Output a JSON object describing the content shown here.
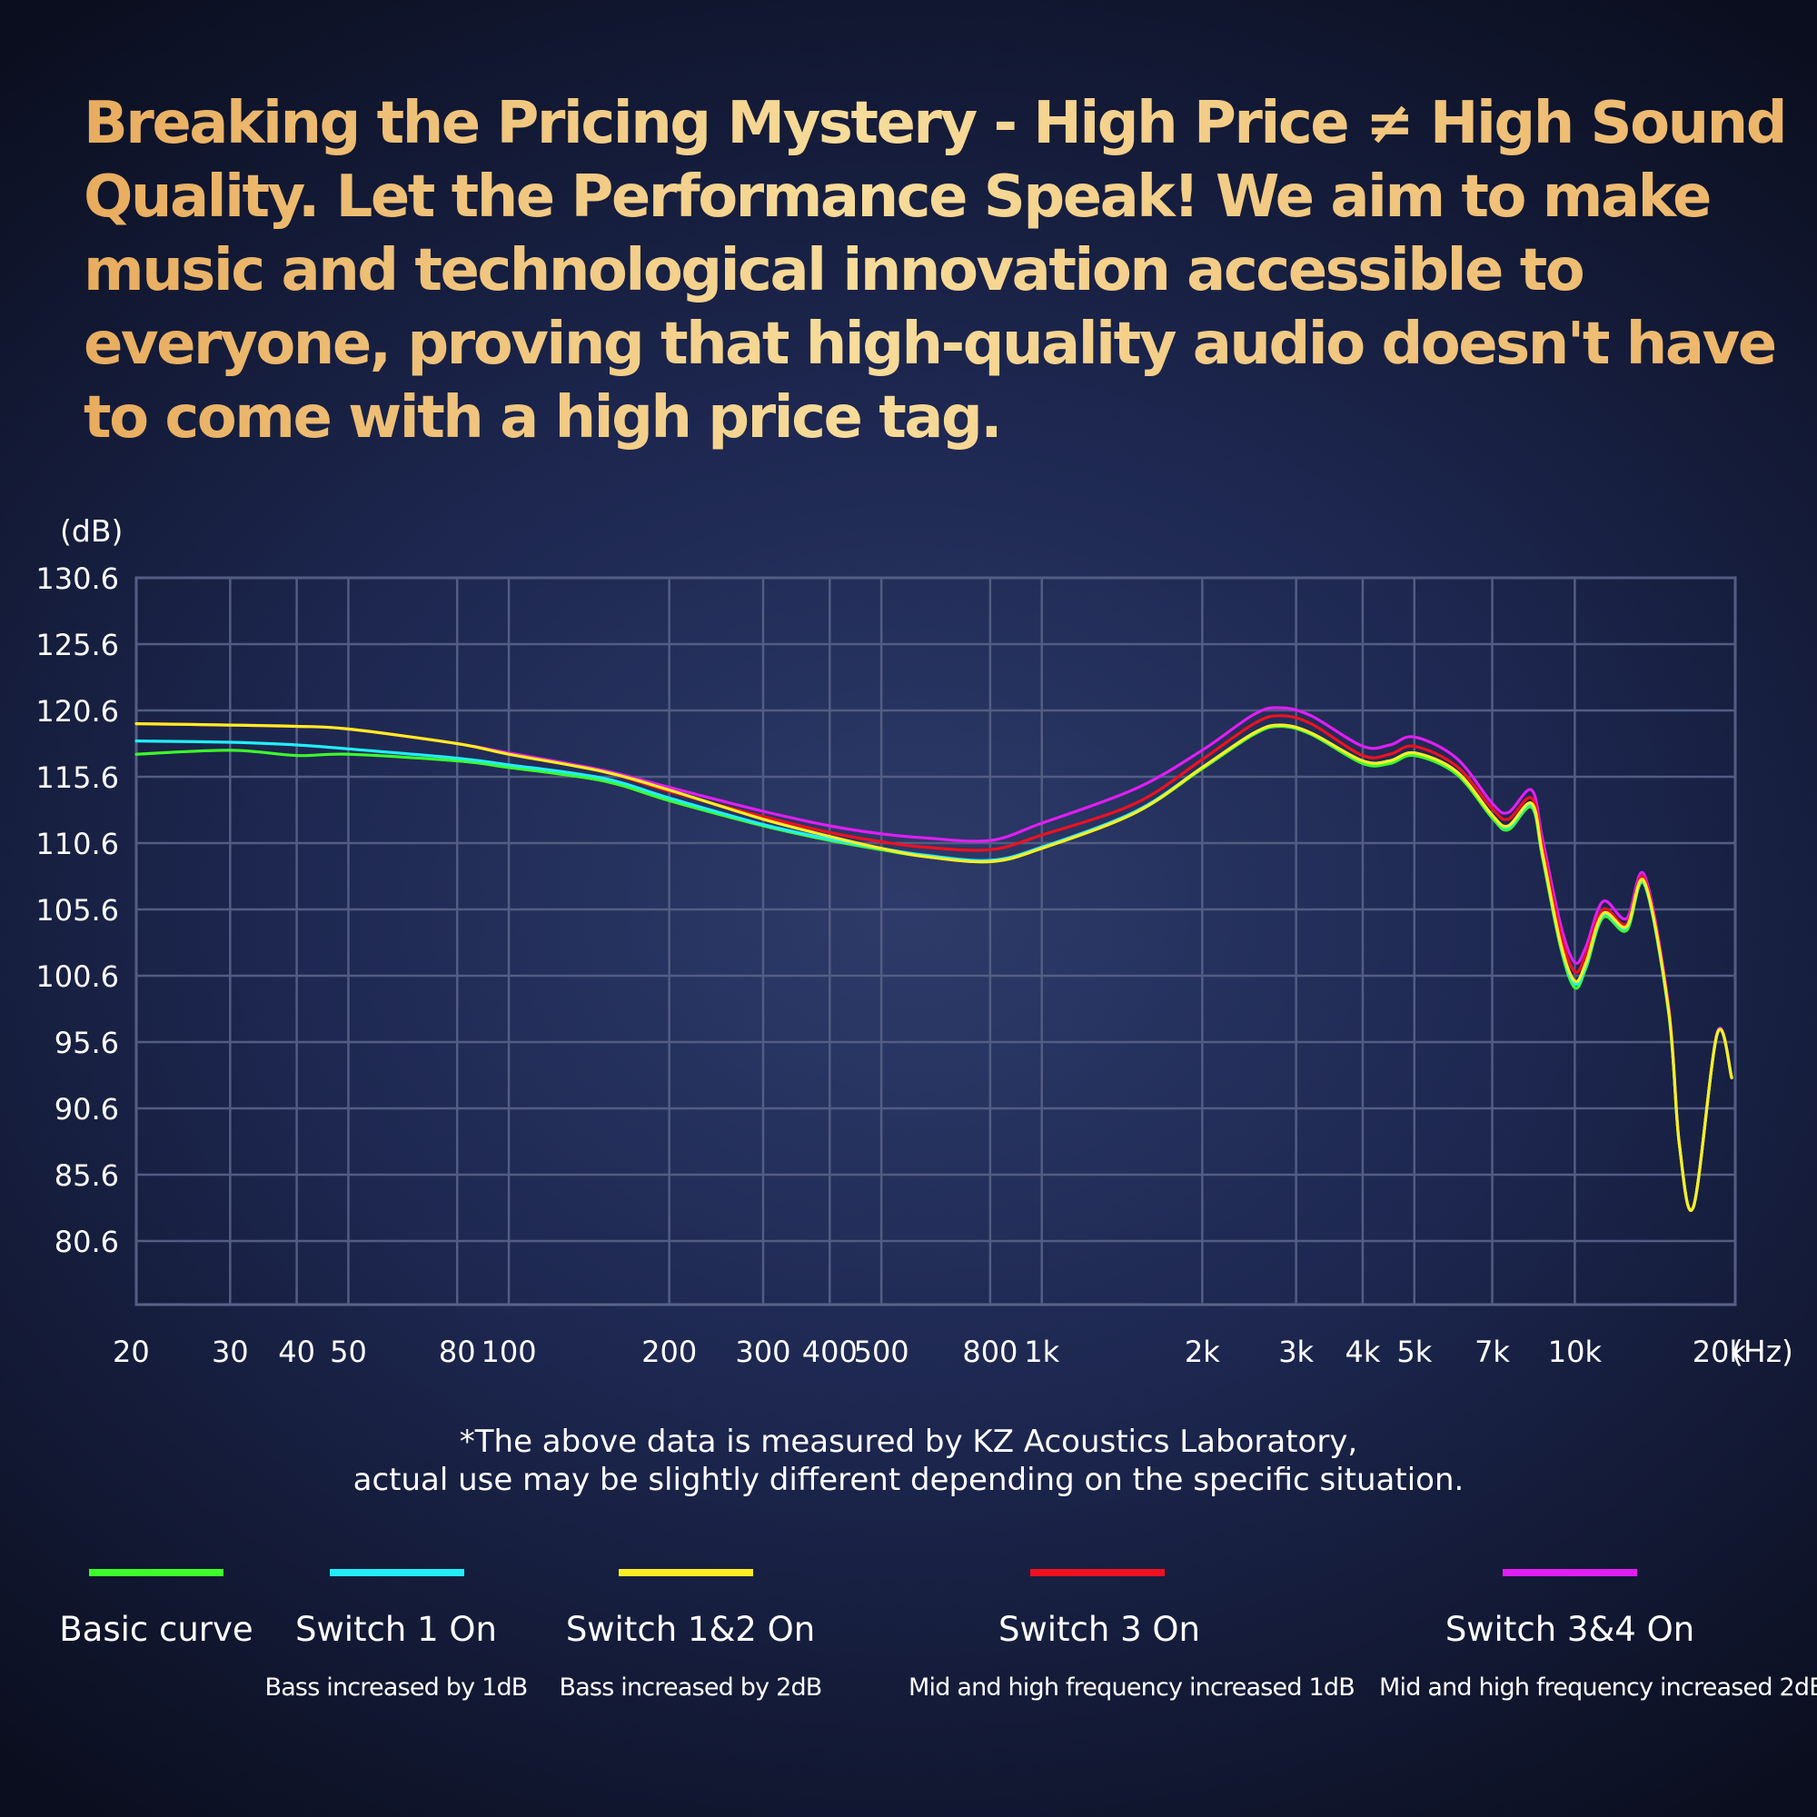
{
  "headline": "Breaking the Pricing Mystery - High Price ≠ High Sound Quality. Let the Performance Speak! We aim to make music and technological innovation accessible to everyone,  proving that high-quality audio doesn't have to come with a high price tag.",
  "note": {
    "line1": "*The above data is measured by KZ Acoustics Laboratory,",
    "line2": "actual use may be slightly different depending on the specific situation."
  },
  "chart_data": {
    "type": "line",
    "title": "",
    "ylabel": "(dB)",
    "xlabel": "(Hz)",
    "xscale": "log",
    "xlim": [
      20,
      20000
    ],
    "ylim": [
      75.6,
      130.6
    ],
    "yticks": [
      "130.6",
      "125.6",
      "120.6",
      "115.6",
      "110.6",
      "105.6",
      "100.6",
      "95.6",
      "90.6",
      "85.6",
      "80.6"
    ],
    "xticks": [
      {
        "value": 20,
        "label": "20"
      },
      {
        "value": 30,
        "label": "30"
      },
      {
        "value": 40,
        "label": "40"
      },
      {
        "value": 50,
        "label": "50"
      },
      {
        "value": 80,
        "label": "80"
      },
      {
        "value": 100,
        "label": "100"
      },
      {
        "value": 200,
        "label": "200"
      },
      {
        "value": 300,
        "label": "300"
      },
      {
        "value": 400,
        "label": "400"
      },
      {
        "value": 500,
        "label": "500"
      },
      {
        "value": 800,
        "label": "800"
      },
      {
        "value": 1000,
        "label": "1k"
      },
      {
        "value": 2000,
        "label": "2k"
      },
      {
        "value": 3000,
        "label": "3k"
      },
      {
        "value": 4000,
        "label": "4k"
      },
      {
        "value": 5000,
        "label": "5k"
      },
      {
        "value": 7000,
        "label": "7k"
      },
      {
        "value": 10000,
        "label": "10k"
      },
      {
        "value": 20000,
        "label": "20k"
      }
    ],
    "grid": true,
    "legend_position": "bottom",
    "series": [
      {
        "name": "Basic curve",
        "description": "",
        "color": "#3cff2a",
        "points": [
          [
            20,
            117.3
          ],
          [
            30,
            117.6
          ],
          [
            40,
            117.2
          ],
          [
            50,
            117.3
          ],
          [
            80,
            116.8
          ],
          [
            100,
            116.3
          ],
          [
            150,
            115.3
          ],
          [
            200,
            113.8
          ],
          [
            300,
            111.9
          ],
          [
            400,
            110.8
          ],
          [
            500,
            110.1
          ],
          [
            600,
            109.6
          ],
          [
            800,
            109.2
          ],
          [
            1000,
            110.2
          ],
          [
            1500,
            112.9
          ],
          [
            2000,
            116.2
          ],
          [
            2500,
            118.8
          ],
          [
            2800,
            119.4
          ],
          [
            3200,
            118.8
          ],
          [
            4000,
            116.6
          ],
          [
            4500,
            116.6
          ],
          [
            5000,
            117.2
          ],
          [
            6000,
            115.8
          ],
          [
            7000,
            112.5
          ],
          [
            7500,
            111.6
          ],
          [
            8300,
            113.3
          ],
          [
            8700,
            109.5
          ],
          [
            9400,
            102.8
          ],
          [
            10000,
            99.7
          ],
          [
            10500,
            101.2
          ],
          [
            11300,
            105.0
          ],
          [
            12500,
            104.0
          ],
          [
            13500,
            107.5
          ],
          [
            15000,
            97.8
          ],
          [
            15700,
            88.0
          ],
          [
            16700,
            83.2
          ],
          [
            18500,
            96.2
          ],
          [
            19700,
            92.9
          ]
        ]
      },
      {
        "name": "Switch 1 On",
        "description": "Bass increased by 1dB",
        "color": "#22eefa",
        "points": [
          [
            20,
            118.3
          ],
          [
            30,
            118.2
          ],
          [
            40,
            118.0
          ],
          [
            50,
            117.7
          ],
          [
            80,
            117.0
          ],
          [
            100,
            116.5
          ],
          [
            150,
            115.5
          ],
          [
            200,
            114.0
          ],
          [
            300,
            112.0
          ],
          [
            400,
            110.9
          ],
          [
            500,
            110.2
          ],
          [
            600,
            109.7
          ],
          [
            800,
            109.3
          ],
          [
            1000,
            110.3
          ],
          [
            1500,
            113.0
          ],
          [
            2000,
            116.3
          ],
          [
            2500,
            118.9
          ],
          [
            2800,
            119.5
          ],
          [
            3200,
            118.9
          ],
          [
            4000,
            116.8
          ],
          [
            4500,
            116.8
          ],
          [
            5000,
            117.4
          ],
          [
            6000,
            116.0
          ],
          [
            7000,
            112.7
          ],
          [
            7500,
            111.8
          ],
          [
            8300,
            113.5
          ],
          [
            8700,
            109.7
          ],
          [
            9400,
            103.0
          ],
          [
            10000,
            100.0
          ],
          [
            10500,
            101.4
          ],
          [
            11300,
            105.2
          ],
          [
            12500,
            104.2
          ],
          [
            13500,
            107.6
          ],
          [
            15000,
            97.9
          ],
          [
            15700,
            88.0
          ],
          [
            16700,
            83.2
          ],
          [
            18500,
            96.2
          ],
          [
            19700,
            92.9
          ]
        ]
      },
      {
        "name": "Switch 1&2 On",
        "description": "Bass increased by 2dB",
        "color": "#ffee22",
        "points": [
          [
            20,
            119.6
          ],
          [
            30,
            119.5
          ],
          [
            40,
            119.4
          ],
          [
            50,
            119.2
          ],
          [
            80,
            118.1
          ],
          [
            100,
            117.3
          ],
          [
            150,
            116.0
          ],
          [
            200,
            114.6
          ],
          [
            300,
            112.4
          ],
          [
            400,
            111.1
          ],
          [
            500,
            110.2
          ],
          [
            600,
            109.6
          ],
          [
            800,
            109.2
          ],
          [
            1000,
            110.2
          ],
          [
            1500,
            112.9
          ],
          [
            2000,
            116.3
          ],
          [
            2500,
            118.9
          ],
          [
            2800,
            119.5
          ],
          [
            3200,
            118.9
          ],
          [
            4000,
            116.8
          ],
          [
            4500,
            116.8
          ],
          [
            5000,
            117.4
          ],
          [
            6000,
            116.0
          ],
          [
            7000,
            112.7
          ],
          [
            7500,
            111.9
          ],
          [
            8300,
            113.6
          ],
          [
            8700,
            109.8
          ],
          [
            9400,
            103.1
          ],
          [
            10000,
            100.2
          ],
          [
            10500,
            101.6
          ],
          [
            11300,
            105.3
          ],
          [
            12500,
            104.3
          ],
          [
            13500,
            107.7
          ],
          [
            15000,
            98.0
          ],
          [
            15700,
            88.0
          ],
          [
            16700,
            83.2
          ],
          [
            18500,
            96.2
          ],
          [
            19700,
            92.9
          ]
        ]
      },
      {
        "name": "Switch 3 On",
        "description": "Mid and high frequency increased 1dB",
        "color": "#f01020",
        "points": [
          [
            20,
            119.6
          ],
          [
            30,
            119.5
          ],
          [
            40,
            119.4
          ],
          [
            50,
            119.2
          ],
          [
            80,
            118.1
          ],
          [
            100,
            117.3
          ],
          [
            150,
            116.0
          ],
          [
            200,
            114.5
          ],
          [
            300,
            112.6
          ],
          [
            400,
            111.4
          ],
          [
            500,
            110.7
          ],
          [
            600,
            110.3
          ],
          [
            800,
            110.1
          ],
          [
            1000,
            111.2
          ],
          [
            1500,
            113.6
          ],
          [
            2000,
            116.9
          ],
          [
            2500,
            119.6
          ],
          [
            2800,
            120.2
          ],
          [
            3200,
            119.6
          ],
          [
            4000,
            117.2
          ],
          [
            4500,
            117.3
          ],
          [
            5000,
            117.9
          ],
          [
            6000,
            116.4
          ],
          [
            7000,
            113.2
          ],
          [
            7500,
            112.4
          ],
          [
            8300,
            114.0
          ],
          [
            8700,
            110.3
          ],
          [
            9400,
            103.8
          ],
          [
            10000,
            100.9
          ],
          [
            10500,
            102.2
          ],
          [
            11300,
            105.6
          ],
          [
            12500,
            104.5
          ],
          [
            13500,
            107.9
          ],
          [
            15000,
            98.1
          ],
          [
            15700,
            88.0
          ],
          [
            16700,
            83.2
          ],
          [
            18500,
            96.2
          ],
          [
            19700,
            92.9
          ]
        ]
      },
      {
        "name": "Switch 3&4 On",
        "description": "Mid and high frequency increased 2dB",
        "color": "#e01ef4",
        "points": [
          [
            20,
            119.6
          ],
          [
            30,
            119.5
          ],
          [
            40,
            119.4
          ],
          [
            50,
            119.2
          ],
          [
            80,
            118.1
          ],
          [
            100,
            117.4
          ],
          [
            150,
            116.1
          ],
          [
            200,
            114.8
          ],
          [
            300,
            113.0
          ],
          [
            400,
            111.9
          ],
          [
            500,
            111.3
          ],
          [
            600,
            111.0
          ],
          [
            800,
            110.8
          ],
          [
            1000,
            112.1
          ],
          [
            1500,
            114.7
          ],
          [
            2000,
            117.6
          ],
          [
            2500,
            120.3
          ],
          [
            2800,
            120.8
          ],
          [
            3200,
            120.2
          ],
          [
            4000,
            117.9
          ],
          [
            4500,
            118.0
          ],
          [
            5000,
            118.6
          ],
          [
            6000,
            117.0
          ],
          [
            7000,
            113.6
          ],
          [
            7500,
            112.9
          ],
          [
            8300,
            114.6
          ],
          [
            8700,
            110.9
          ],
          [
            9400,
            104.5
          ],
          [
            10000,
            101.6
          ],
          [
            10500,
            102.8
          ],
          [
            11300,
            106.2
          ],
          [
            12500,
            104.9
          ],
          [
            13500,
            108.2
          ],
          [
            15000,
            98.3
          ],
          [
            15700,
            88.1
          ],
          [
            16700,
            83.2
          ],
          [
            18500,
            96.3
          ],
          [
            19700,
            92.9
          ]
        ]
      }
    ]
  }
}
